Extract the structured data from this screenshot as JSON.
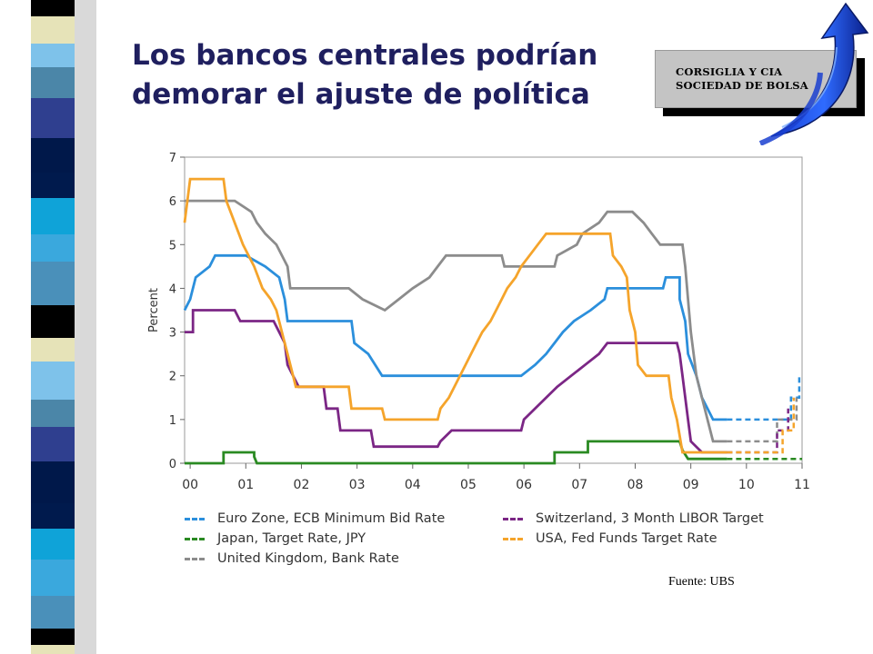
{
  "slide": {
    "title_line1": "Los bancos centrales podrían",
    "title_line2": "demorar el ajuste de política",
    "logo_line1": "CORSIGLIA Y CIA",
    "logo_line2": "SOCIEDAD DE BOLSA",
    "source": "Fuente: UBS",
    "title_color": "#1f1f5f"
  },
  "chart_data": {
    "type": "line",
    "step": true,
    "title": "",
    "xlabel": "",
    "ylabel": "Percent",
    "xlim": [
      1999.9,
      2011.0
    ],
    "ylim": [
      0,
      7
    ],
    "yticks": [
      0,
      1,
      2,
      3,
      4,
      5,
      6,
      7
    ],
    "xticks": [
      {
        "value": 2000,
        "label": "00"
      },
      {
        "value": 2001,
        "label": "01"
      },
      {
        "value": 2002,
        "label": "02"
      },
      {
        "value": 2003,
        "label": "03"
      },
      {
        "value": 2004,
        "label": "04"
      },
      {
        "value": 2005,
        "label": "05"
      },
      {
        "value": 2006,
        "label": "06"
      },
      {
        "value": 2007,
        "label": "07"
      },
      {
        "value": 2008,
        "label": "08"
      },
      {
        "value": 2009,
        "label": "09"
      },
      {
        "value": 2010,
        "label": "10"
      },
      {
        "value": 2011,
        "label": "11"
      }
    ],
    "grid": false,
    "legend_position": "bottom",
    "series": [
      {
        "name": "Euro Zone, ECB Minimum Bid Rate",
        "color": "#2b8fdc",
        "points": [
          [
            1999.9,
            3.5
          ],
          [
            2000.0,
            3.75
          ],
          [
            2000.1,
            4.25
          ],
          [
            2000.35,
            4.5
          ],
          [
            2000.45,
            4.75
          ],
          [
            2001.0,
            4.75
          ],
          [
            2001.35,
            4.5
          ],
          [
            2001.6,
            4.25
          ],
          [
            2001.7,
            3.75
          ],
          [
            2001.75,
            3.25
          ],
          [
            2002.9,
            3.25
          ],
          [
            2002.95,
            2.75
          ],
          [
            2003.2,
            2.5
          ],
          [
            2003.45,
            2.0
          ],
          [
            2005.95,
            2.0
          ],
          [
            2006.2,
            2.25
          ],
          [
            2006.4,
            2.5
          ],
          [
            2006.55,
            2.75
          ],
          [
            2006.7,
            3.0
          ],
          [
            2006.9,
            3.25
          ],
          [
            2007.2,
            3.5
          ],
          [
            2007.45,
            3.75
          ],
          [
            2007.5,
            4.0
          ],
          [
            2008.5,
            4.0
          ],
          [
            2008.55,
            4.25
          ],
          [
            2008.8,
            4.25
          ],
          [
            2008.8,
            3.75
          ],
          [
            2008.9,
            3.25
          ],
          [
            2008.95,
            2.5
          ],
          [
            2009.1,
            2.0
          ],
          [
            2009.2,
            1.5
          ],
          [
            2009.3,
            1.25
          ],
          [
            2009.4,
            1.0
          ],
          [
            2009.65,
            1.0
          ]
        ],
        "forecast": [
          [
            2009.65,
            1.0
          ],
          [
            2010.8,
            1.0
          ],
          [
            2010.8,
            1.5
          ],
          [
            2010.95,
            1.5
          ],
          [
            2010.95,
            2.0
          ]
        ]
      },
      {
        "name": "Japan, Target Rate, JPY",
        "color": "#2a8a22",
        "points": [
          [
            1999.9,
            0.0
          ],
          [
            2000.6,
            0.0
          ],
          [
            2000.6,
            0.25
          ],
          [
            2001.15,
            0.25
          ],
          [
            2001.15,
            0.15
          ],
          [
            2001.2,
            0.0
          ],
          [
            2006.55,
            0.0
          ],
          [
            2006.55,
            0.25
          ],
          [
            2007.15,
            0.25
          ],
          [
            2007.15,
            0.5
          ],
          [
            2008.8,
            0.5
          ],
          [
            2008.85,
            0.3
          ],
          [
            2008.95,
            0.1
          ],
          [
            2009.65,
            0.1
          ]
        ],
        "forecast": [
          [
            2009.65,
            0.1
          ],
          [
            2011.0,
            0.1
          ]
        ]
      },
      {
        "name": "United Kingdom, Bank Rate",
        "color": "#8c8c8c",
        "points": [
          [
            1999.9,
            6.0
          ],
          [
            2000.0,
            6.0
          ],
          [
            2000.8,
            6.0
          ],
          [
            2001.1,
            5.75
          ],
          [
            2001.2,
            5.5
          ],
          [
            2001.35,
            5.25
          ],
          [
            2001.55,
            5.0
          ],
          [
            2001.65,
            4.75
          ],
          [
            2001.75,
            4.5
          ],
          [
            2001.8,
            4.0
          ],
          [
            2002.85,
            4.0
          ],
          [
            2003.1,
            3.75
          ],
          [
            2003.5,
            3.5
          ],
          [
            2003.75,
            3.75
          ],
          [
            2004.0,
            4.0
          ],
          [
            2004.3,
            4.25
          ],
          [
            2004.45,
            4.5
          ],
          [
            2004.6,
            4.75
          ],
          [
            2005.6,
            4.75
          ],
          [
            2005.65,
            4.5
          ],
          [
            2006.55,
            4.5
          ],
          [
            2006.6,
            4.75
          ],
          [
            2006.95,
            5.0
          ],
          [
            2007.05,
            5.25
          ],
          [
            2007.35,
            5.5
          ],
          [
            2007.5,
            5.75
          ],
          [
            2007.95,
            5.75
          ],
          [
            2008.15,
            5.5
          ],
          [
            2008.3,
            5.25
          ],
          [
            2008.45,
            5.0
          ],
          [
            2008.85,
            5.0
          ],
          [
            2008.9,
            4.5
          ],
          [
            2009.0,
            3.0
          ],
          [
            2009.1,
            2.0
          ],
          [
            2009.2,
            1.5
          ],
          [
            2009.3,
            1.0
          ],
          [
            2009.4,
            0.5
          ],
          [
            2009.65,
            0.5
          ]
        ],
        "forecast": [
          [
            2009.65,
            0.5
          ],
          [
            2010.55,
            0.5
          ],
          [
            2010.55,
            1.0
          ],
          [
            2010.9,
            1.0
          ],
          [
            2010.9,
            1.5
          ]
        ]
      },
      {
        "name": "Switzerland, 3 Month LIBOR Target",
        "color": "#7b2685",
        "points": [
          [
            1999.9,
            3.0
          ],
          [
            2000.05,
            3.0
          ],
          [
            2000.05,
            3.5
          ],
          [
            2000.8,
            3.5
          ],
          [
            2000.9,
            3.25
          ],
          [
            2001.5,
            3.25
          ],
          [
            2001.7,
            2.75
          ],
          [
            2001.75,
            2.25
          ],
          [
            2001.95,
            1.75
          ],
          [
            2002.4,
            1.75
          ],
          [
            2002.45,
            1.25
          ],
          [
            2002.65,
            1.25
          ],
          [
            2002.7,
            0.75
          ],
          [
            2003.25,
            0.75
          ],
          [
            2003.3,
            0.38
          ],
          [
            2004.45,
            0.38
          ],
          [
            2004.5,
            0.5
          ],
          [
            2004.7,
            0.75
          ],
          [
            2005.95,
            0.75
          ],
          [
            2006.0,
            1.0
          ],
          [
            2006.2,
            1.25
          ],
          [
            2006.4,
            1.5
          ],
          [
            2006.6,
            1.75
          ],
          [
            2006.85,
            2.0
          ],
          [
            2007.1,
            2.25
          ],
          [
            2007.35,
            2.5
          ],
          [
            2007.5,
            2.75
          ],
          [
            2008.75,
            2.75
          ],
          [
            2008.8,
            2.5
          ],
          [
            2008.85,
            2.0
          ],
          [
            2008.95,
            1.0
          ],
          [
            2009.0,
            0.5
          ],
          [
            2009.2,
            0.25
          ],
          [
            2009.65,
            0.25
          ]
        ],
        "forecast": [
          [
            2009.65,
            0.25
          ],
          [
            2010.55,
            0.25
          ],
          [
            2010.55,
            0.75
          ],
          [
            2010.75,
            0.75
          ],
          [
            2010.75,
            1.25
          ]
        ]
      },
      {
        "name": "USA, Fed Funds Target Rate",
        "color": "#f5a42b",
        "points": [
          [
            1999.9,
            5.5
          ],
          [
            2000.0,
            6.5
          ],
          [
            2000.6,
            6.5
          ],
          [
            2000.65,
            6.0
          ],
          [
            2000.8,
            5.5
          ],
          [
            2000.95,
            5.0
          ],
          [
            2001.15,
            4.5
          ],
          [
            2001.3,
            4.0
          ],
          [
            2001.45,
            3.75
          ],
          [
            2001.55,
            3.5
          ],
          [
            2001.65,
            3.0
          ],
          [
            2001.75,
            2.5
          ],
          [
            2001.85,
            2.0
          ],
          [
            2001.9,
            1.75
          ],
          [
            2002.85,
            1.75
          ],
          [
            2002.9,
            1.25
          ],
          [
            2003.45,
            1.25
          ],
          [
            2003.5,
            1.0
          ],
          [
            2004.45,
            1.0
          ],
          [
            2004.5,
            1.25
          ],
          [
            2004.65,
            1.5
          ],
          [
            2004.75,
            1.75
          ],
          [
            2004.85,
            2.0
          ],
          [
            2004.95,
            2.25
          ],
          [
            2005.05,
            2.5
          ],
          [
            2005.15,
            2.75
          ],
          [
            2005.25,
            3.0
          ],
          [
            2005.4,
            3.25
          ],
          [
            2005.5,
            3.5
          ],
          [
            2005.6,
            3.75
          ],
          [
            2005.7,
            4.0
          ],
          [
            2005.85,
            4.25
          ],
          [
            2005.95,
            4.5
          ],
          [
            2006.1,
            4.75
          ],
          [
            2006.25,
            5.0
          ],
          [
            2006.4,
            5.25
          ],
          [
            2007.55,
            5.25
          ],
          [
            2007.6,
            4.75
          ],
          [
            2007.75,
            4.5
          ],
          [
            2007.85,
            4.25
          ],
          [
            2007.9,
            3.5
          ],
          [
            2008.0,
            3.0
          ],
          [
            2008.05,
            2.25
          ],
          [
            2008.2,
            2.0
          ],
          [
            2008.6,
            2.0
          ],
          [
            2008.65,
            1.5
          ],
          [
            2008.75,
            1.0
          ],
          [
            2008.85,
            0.25
          ],
          [
            2009.65,
            0.25
          ]
        ],
        "forecast": [
          [
            2009.65,
            0.25
          ],
          [
            2010.65,
            0.25
          ],
          [
            2010.65,
            0.75
          ],
          [
            2010.85,
            0.75
          ],
          [
            2010.85,
            1.5
          ]
        ]
      }
    ]
  }
}
